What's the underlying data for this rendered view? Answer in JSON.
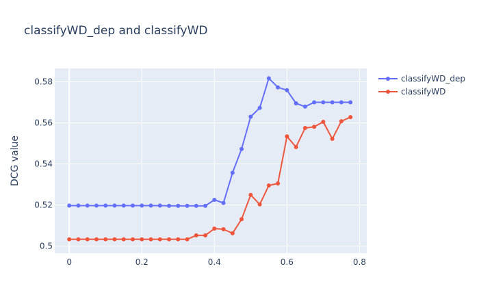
{
  "chart_data": {
    "type": "line",
    "title": "classifyWD_dep and classifyWD",
    "xlabel": "",
    "ylabel": "DCG value",
    "xlim": [
      -0.04,
      0.82
    ],
    "ylim": [
      0.4965,
      0.5865
    ],
    "xticks": [
      0,
      0.2,
      0.4,
      0.6,
      0.8
    ],
    "xtick_labels": [
      "0",
      "0.2",
      "0.4",
      "0.6",
      "0.8"
    ],
    "yticks": [
      0.5,
      0.52,
      0.54,
      0.56,
      0.58
    ],
    "ytick_labels": [
      "0.5",
      "0.52",
      "0.54",
      "0.56",
      "0.58"
    ],
    "grid": true,
    "legend_position": "top-right",
    "x": [
      0,
      0.025,
      0.05,
      0.075,
      0.1,
      0.125,
      0.15,
      0.175,
      0.2,
      0.225,
      0.25,
      0.275,
      0.3,
      0.325,
      0.35,
      0.375,
      0.4,
      0.425,
      0.45,
      0.475,
      0.5,
      0.525,
      0.55,
      0.575,
      0.6,
      0.625,
      0.65,
      0.675,
      0.7,
      0.725,
      0.75,
      0.775
    ],
    "series": [
      {
        "name": "classifyWD_dep",
        "color": "#636efa",
        "values": [
          0.5197,
          0.5197,
          0.5197,
          0.5197,
          0.5197,
          0.5197,
          0.5197,
          0.5197,
          0.5197,
          0.5197,
          0.5197,
          0.5196,
          0.5196,
          0.5196,
          0.5196,
          0.5196,
          0.5225,
          0.521,
          0.5357,
          0.5473,
          0.563,
          0.5673,
          0.5817,
          0.5773,
          0.5759,
          0.5695,
          0.5679,
          0.57,
          0.57,
          0.57,
          0.57,
          0.57
        ]
      },
      {
        "name": "classifyWD",
        "color": "#ef553b",
        "values": [
          0.5033,
          0.5033,
          0.5033,
          0.5033,
          0.5033,
          0.5033,
          0.5033,
          0.5033,
          0.5033,
          0.5033,
          0.5033,
          0.5033,
          0.5033,
          0.5033,
          0.5052,
          0.5052,
          0.5085,
          0.5082,
          0.5062,
          0.5131,
          0.5249,
          0.5203,
          0.5295,
          0.5305,
          0.5534,
          0.5482,
          0.5575,
          0.5581,
          0.5605,
          0.5522,
          0.5608,
          0.5628
        ]
      }
    ]
  }
}
